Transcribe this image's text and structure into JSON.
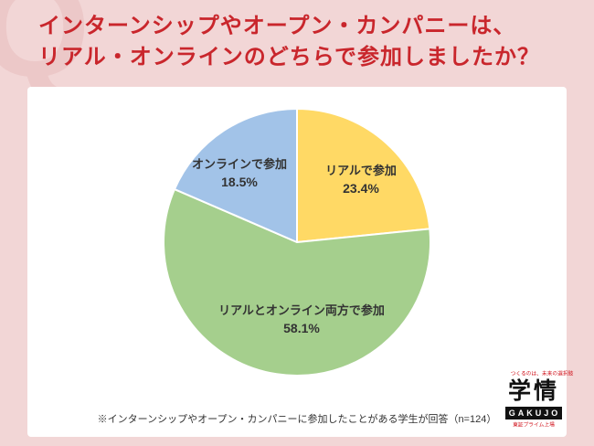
{
  "page": {
    "bg_color": "#f2d6d6",
    "q_watermark": "Q"
  },
  "header": {
    "line1": "インターンシップやオープン・カンパニーは、",
    "line2": "リアル・オンラインのどちらで参加しましたか？",
    "color": "#c9262c"
  },
  "chart_data": {
    "type": "pie",
    "title": "",
    "start_angle_deg_from_top": 0,
    "direction": "clockwise",
    "unit": "%",
    "legend_position": "labels-on-chart",
    "slices": [
      {
        "label": "リアルで参加",
        "value": 23.4,
        "pct_label": "23.4%",
        "color": "#FFD965"
      },
      {
        "label": "リアルとオンライン両方で参加",
        "value": 58.1,
        "pct_label": "58.1%",
        "color": "#A5CF8D"
      },
      {
        "label": "オンラインで参加",
        "value": 18.5,
        "pct_label": "18.5%",
        "color": "#A2C3E8"
      }
    ]
  },
  "footnote": "※インターンシップやオープン・カンパニーに参加したことがある学生が回答（n=124）",
  "logo": {
    "tagline": "つくるのは、未来の選択肢",
    "brand": "学情",
    "brand_en": "GAKUJO",
    "listing": "東証プライム上場"
  }
}
